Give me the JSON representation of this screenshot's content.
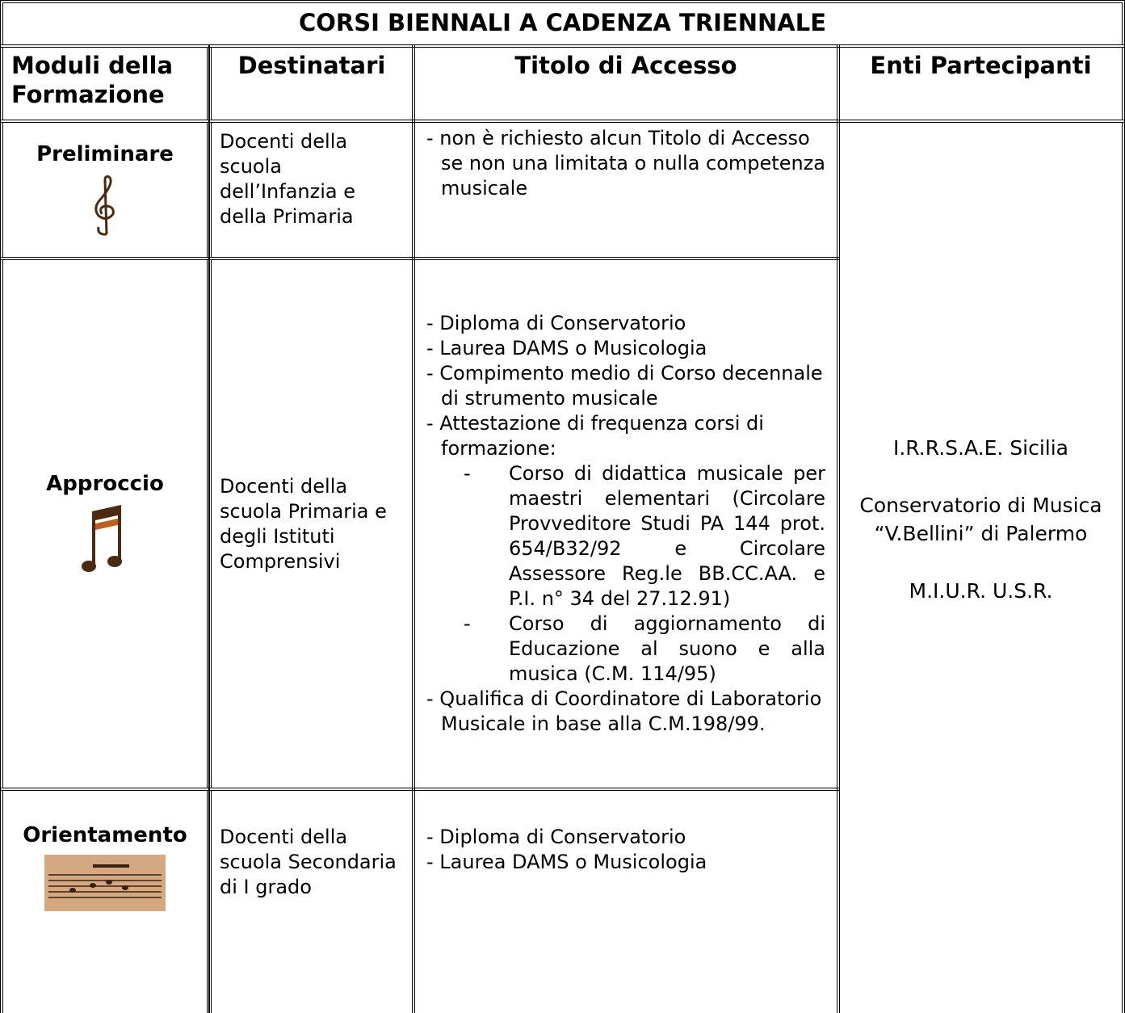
{
  "title": "CORSI BIENNALI A CADENZA TRIENNALE",
  "headers": [
    "Moduli della Formazione",
    "Destinatari",
    "Titolo di Accesso",
    "Enti Partecipanti"
  ],
  "rows": [
    {
      "module": "Preliminare",
      "recipients": "Docenti della scuola dell’Infanzia e della Primaria",
      "access": [
        {
          "text": "non è richiesto alcun Titolo di Accesso se non una limitata o nulla competenza  musicale"
        }
      ]
    },
    {
      "module": "Approccio",
      "recipients": "Docenti della scuola Primaria e degli Istituti Comprensivi",
      "access": [
        {
          "text": "Diploma di Conservatorio"
        },
        {
          "text": "Laurea DAMS o Musicologia"
        },
        {
          "text": "Compimento medio di Corso decennale di strumento musicale"
        },
        {
          "text": "Attestazione di frequenza corsi di formazione:",
          "sub": [
            "Corso di didattica musicale per maestri elementari (Circolare Provveditore Studi PA 144 prot. 654/B32/92 e Circolare Assessore Reg.le BB.CC.AA. e P.I. n° 34 del 27.12.91)",
            "Corso di aggiornamento di Educazione al suono e alla musica (C.M. 114/95)"
          ]
        },
        {
          "text": "Qualifica di Coordinatore di Laboratorio Musicale in base alla C.M.198/99."
        }
      ]
    },
    {
      "module": "Orientamento",
      "recipients": "Docenti della scuola Secondaria di I grado",
      "access": [
        {
          "text": "Diploma di Conservatorio"
        },
        {
          "text": "Laurea DAMS o Musicologia"
        }
      ]
    }
  ],
  "entities": [
    "I.R.R.S.A.E. Sicilia",
    "Conservatorio di Musica “V.Bellini” di Palermo",
    "M.I.U.R. U.S.R."
  ]
}
